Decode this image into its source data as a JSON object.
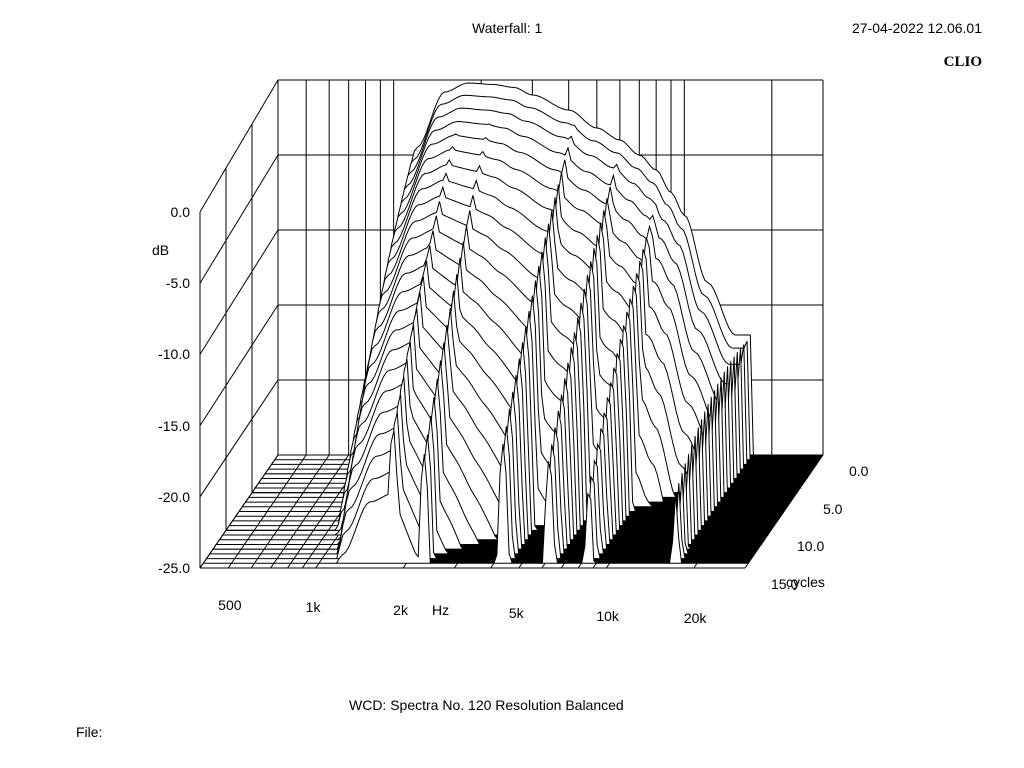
{
  "header": {
    "title": "Waterfall: 1",
    "timestamp": "27-04-2022 12.06.01",
    "brand": "CLIO"
  },
  "footer": {
    "info": "WCD:   Spectra No. 120   Resolution Balanced",
    "file_label": "File:"
  },
  "chart_data": {
    "type": "waterfall",
    "title": "Waterfall: 1",
    "xlabel": "Hz",
    "ylabel": "dB",
    "zlabel": "cycles",
    "x_scale": "log",
    "xlim": [
      400,
      30000
    ],
    "ylim": [
      -25,
      0
    ],
    "zlim": [
      0,
      15
    ],
    "x_ticks": [
      {
        "value": 500,
        "label": "500"
      },
      {
        "value": 1000,
        "label": "1k"
      },
      {
        "value": 2000,
        "label": "2k"
      },
      {
        "value": 5000,
        "label": "5k"
      },
      {
        "value": 10000,
        "label": "10k"
      },
      {
        "value": 20000,
        "label": "20k"
      }
    ],
    "y_ticks": [
      {
        "value": 0,
        "label": "0.0"
      },
      {
        "value": -5,
        "label": "-5.0"
      },
      {
        "value": -10,
        "label": "-10.0"
      },
      {
        "value": -15,
        "label": "-15.0"
      },
      {
        "value": -20,
        "label": "-20.0"
      },
      {
        "value": -25,
        "label": "-25.0"
      }
    ],
    "z_ticks": [
      {
        "value": 0,
        "label": "0.0"
      },
      {
        "value": 5,
        "label": "5.0"
      },
      {
        "value": 10,
        "label": "10.0"
      },
      {
        "value": 15,
        "label": "15.0"
      }
    ],
    "slices": 24,
    "slice_step_cycles": 0.625,
    "initial_response": {
      "freq_hz": [
        900,
        1000,
        1200,
        1500,
        1800,
        2200,
        2600,
        3000,
        4000,
        5000,
        6000,
        7000,
        8000,
        9000,
        10000,
        12000,
        15000,
        17000
      ],
      "level_db": [
        -17,
        -12,
        -4.5,
        -0.8,
        -0.2,
        -0.3,
        -0.5,
        -1.0,
        -2.0,
        -3.2,
        -4.0,
        -5.0,
        -6.0,
        -7.5,
        -9.0,
        -13.5,
        -17,
        -17
      ]
    },
    "resonance_peaks": [
      {
        "freq_hz": 1800,
        "level_db": -12
      },
      {
        "freq_hz": 2300,
        "level_db": -14
      },
      {
        "freq_hz": 4300,
        "level_db": -13
      },
      {
        "freq_hz": 6200,
        "level_db": -14
      },
      {
        "freq_hz": 8500,
        "level_db": -16
      },
      {
        "freq_hz": 17000,
        "level_db": -15
      }
    ],
    "colors": {
      "line": "#000000",
      "background": "#ffffff",
      "floor": "#000000"
    }
  }
}
